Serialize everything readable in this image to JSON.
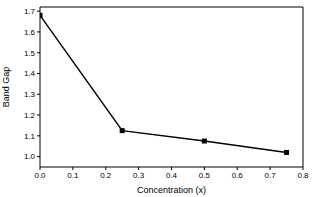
{
  "chart_data": {
    "type": "line",
    "x_label": "Concentration (x)",
    "y_label": "Band Gap",
    "x": [
      0,
      0.25,
      0.5,
      0.75
    ],
    "series": [
      {
        "name": "Band Gap",
        "color": "#000000",
        "marker": "square",
        "line_style": "solid",
        "values": [
          1.68,
          1.125,
          1.075,
          1.02
        ]
      }
    ],
    "xlim": [
      0,
      0.8
    ],
    "ylim": [
      0.95,
      1.72
    ],
    "xticks": [
      {
        "value": 0,
        "label": "0.0"
      },
      0.1,
      0.2,
      0.3,
      0.4,
      0.5,
      0.6,
      0.7,
      0.8
    ],
    "yticks": [
      {
        "value": 1,
        "label": "1.0"
      },
      1.1,
      1.2,
      1.3,
      1.4,
      1.5,
      1.6,
      1.7
    ],
    "grid": false
  }
}
